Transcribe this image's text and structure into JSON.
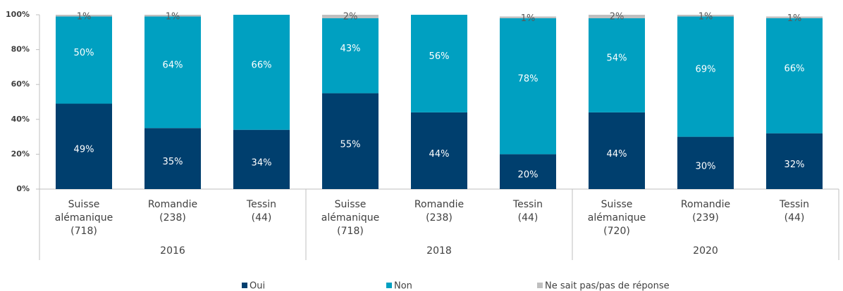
{
  "chart_data": {
    "type": "stacked_bar",
    "categories": [
      [
        "Suisse",
        "alémanique",
        "(718)"
      ],
      [
        "Romandie",
        "(238)"
      ],
      [
        "Tessin",
        "(44)"
      ],
      [
        "Suisse",
        "alémanique",
        "(718)"
      ],
      [
        "Romandie",
        "(238)"
      ],
      [
        "Tessin",
        "(44)"
      ],
      [
        "Suisse",
        "alémanique",
        "(720)"
      ],
      [
        "Romandie",
        "(239)"
      ],
      [
        "Tessin",
        "(44)"
      ]
    ],
    "groups": [
      "2016",
      "2018",
      "2020"
    ],
    "series": [
      {
        "name": "Oui",
        "color": "#003f6e",
        "values": [
          49,
          35,
          34,
          55,
          44,
          20,
          44,
          30,
          32
        ],
        "value_labels": [
          "49%",
          "35%",
          "34%",
          "55%",
          "44%",
          "20%",
          "44%",
          "30%",
          "32%"
        ]
      },
      {
        "name": "Non",
        "color": "#00a0c1",
        "values": [
          50,
          64,
          66,
          43,
          56,
          78,
          54,
          69,
          66
        ],
        "value_labels": [
          "50%",
          "64%",
          "66%",
          "43%",
          "56%",
          "78%",
          "54%",
          "69%",
          "66%"
        ]
      },
      {
        "name": "Ne sait pas/pas de réponse",
        "color": "#bfbfbf",
        "values": [
          1,
          1,
          null,
          2,
          null,
          1,
          2,
          1,
          1
        ],
        "value_labels": [
          "1%",
          "1%",
          null,
          "2%",
          null,
          "1%",
          "2%",
          "1%",
          "1%"
        ]
      }
    ],
    "ylim": [
      0,
      100
    ],
    "yticks": [
      {
        "value": 0,
        "label": "0%"
      },
      {
        "value": 20,
        "label": "20%"
      },
      {
        "value": 40,
        "label": "40%"
      },
      {
        "value": 60,
        "label": "60%"
      },
      {
        "value": 80,
        "label": "80%"
      },
      {
        "value": 100,
        "label": "100%"
      }
    ],
    "legend": "bottom"
  }
}
